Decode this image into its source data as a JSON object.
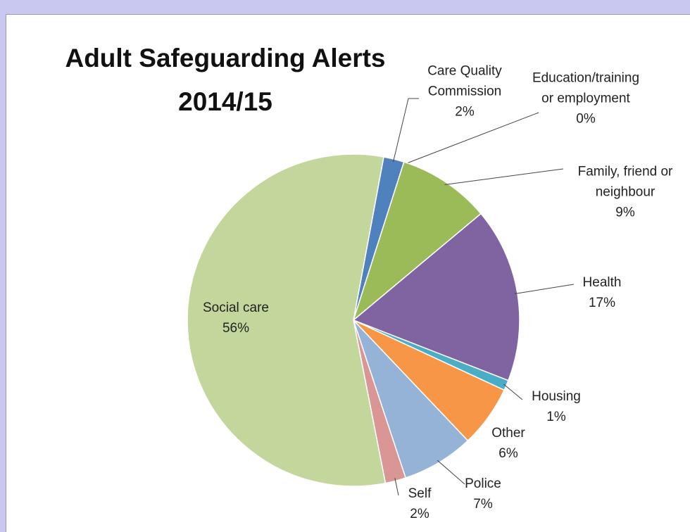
{
  "chart_data": {
    "type": "pie",
    "title": "Adult Safeguarding Alerts 2014/15",
    "categories": [
      "Care Quality Commission",
      "Education/training or employment",
      "Family, friend or neighbour",
      "Health",
      "Housing",
      "Other",
      "Police",
      "Self",
      "Social care"
    ],
    "values": [
      2,
      0,
      9,
      17,
      1,
      6,
      7,
      2,
      56
    ],
    "value_labels": [
      "2%",
      "0%",
      "9%",
      "17%",
      "1%",
      "6%",
      "7%",
      "2%",
      "56%"
    ],
    "colors": [
      "#4f81bd",
      "#c0504d",
      "#9bbb59",
      "#8064a2",
      "#4bacc6",
      "#f79646",
      "#95b3d7",
      "#d99694",
      "#c3d69b"
    ]
  }
}
